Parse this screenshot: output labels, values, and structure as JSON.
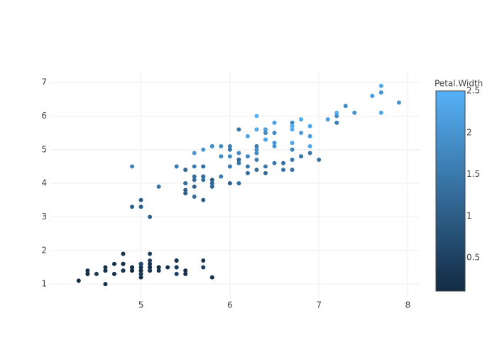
{
  "chart_data": {
    "type": "scatter",
    "x": [
      5.1,
      4.9,
      4.7,
      4.6,
      5,
      5.4,
      4.6,
      5,
      4.4,
      4.9,
      5.4,
      4.8,
      4.8,
      4.3,
      5.8,
      5.7,
      5.4,
      5.1,
      5.7,
      5.1,
      5.4,
      5.1,
      4.6,
      5.1,
      4.8,
      5,
      5,
      5.2,
      5.2,
      4.7,
      4.8,
      5.4,
      5.2,
      5.5,
      4.9,
      5,
      5.5,
      4.9,
      4.4,
      5.1,
      5,
      4.5,
      4.4,
      5,
      5.1,
      4.8,
      5.1,
      4.6,
      5.3,
      5,
      7,
      6.4,
      6.9,
      5.5,
      6.5,
      5.7,
      6.3,
      4.9,
      6.6,
      5.2,
      5,
      5.9,
      6,
      6.1,
      5.6,
      6.7,
      5.6,
      5.8,
      6.2,
      5.6,
      5.9,
      6.1,
      6.3,
      6.1,
      6.4,
      6.6,
      6.8,
      6.7,
      6,
      5.7,
      5.5,
      5.5,
      5.8,
      6,
      5.4,
      6,
      6.7,
      6.3,
      5.6,
      5.5,
      5.5,
      6.1,
      5.8,
      5,
      5.6,
      5.7,
      5.7,
      6.2,
      5.1,
      5.7,
      6.3,
      5.8,
      7.1,
      6.3,
      6.5,
      7.6,
      4.9,
      7.3,
      6.7,
      7.2,
      6.5,
      6.4,
      6.8,
      5.7,
      5.8,
      6.4,
      6.5,
      7.7,
      7.7,
      6,
      6.9,
      5.6,
      7.7,
      6.3,
      6.7,
      7.2,
      6.2,
      6.1,
      6.4,
      7.2,
      7.4,
      7.9,
      6.4,
      6.3,
      6.1,
      7.7,
      6.3,
      6.4,
      6,
      6.9,
      6.7,
      6.9,
      5.8,
      6.8,
      6.7,
      6.7,
      6.3,
      6.5,
      6.2,
      5.9
    ],
    "values": [
      1.4,
      1.4,
      1.3,
      1.5,
      1.4,
      1.7,
      1.4,
      1.5,
      1.4,
      1.5,
      1.5,
      1.6,
      1.4,
      1.1,
      1.2,
      1.5,
      1.3,
      1.4,
      1.7,
      1.5,
      1.7,
      1.5,
      1,
      1.7,
      1.9,
      1.6,
      1.6,
      1.5,
      1.4,
      1.6,
      1.6,
      1.5,
      1.5,
      1.4,
      1.5,
      1.2,
      1.3,
      1.4,
      1.3,
      1.5,
      1.3,
      1.3,
      1.3,
      1.6,
      1.9,
      1.4,
      1.6,
      1.4,
      1.5,
      1.4,
      4.7,
      4.5,
      4.9,
      4,
      4.6,
      4.5,
      4.7,
      3.3,
      4.6,
      3.9,
      3.5,
      4.2,
      4,
      4.7,
      3.6,
      4.4,
      4.5,
      4.1,
      4.5,
      3.9,
      4.8,
      4,
      4.9,
      4.7,
      4.3,
      4.4,
      4.8,
      5,
      4.5,
      3.5,
      3.8,
      3.7,
      3.9,
      5.1,
      4.5,
      4.5,
      4.7,
      4.4,
      4.1,
      4,
      4.4,
      4.6,
      4,
      3.3,
      4.2,
      4.2,
      4.2,
      4.3,
      3,
      4.1,
      6,
      5.1,
      5.9,
      5.6,
      5.8,
      6.6,
      4.5,
      6.3,
      5.8,
      6.1,
      5.1,
      5.3,
      5.5,
      5,
      5.1,
      5.3,
      5.5,
      6.7,
      6.9,
      5,
      5.7,
      4.9,
      6.7,
      4.9,
      5.7,
      6,
      4.8,
      4.9,
      5.6,
      5.8,
      6.1,
      6.4,
      5.6,
      5.1,
      5.6,
      6.1,
      5.6,
      5.5,
      4.8,
      5.4,
      5.6,
      5.1,
      5.1,
      5.9,
      5.7,
      5.2,
      5,
      5.2,
      5.4,
      5.1
    ],
    "color_values": [
      0.2,
      0.2,
      0.2,
      0.2,
      0.2,
      0.4,
      0.3,
      0.2,
      0.2,
      0.1,
      0.2,
      0.2,
      0.1,
      0.1,
      0.2,
      0.4,
      0.4,
      0.3,
      0.3,
      0.3,
      0.2,
      0.4,
      0.2,
      0.5,
      0.2,
      0.2,
      0.4,
      0.2,
      0.2,
      0.2,
      0.2,
      0.4,
      0.1,
      0.2,
      0.2,
      0.2,
      0.2,
      0.1,
      0.2,
      0.2,
      0.3,
      0.3,
      0.2,
      0.6,
      0.4,
      0.3,
      0.2,
      0.2,
      0.2,
      0.2,
      1.4,
      1.5,
      1.5,
      1.3,
      1.5,
      1.3,
      1.6,
      1,
      1.3,
      1.4,
      1,
      1.5,
      1,
      1.4,
      1.3,
      1.4,
      1.5,
      1,
      1.5,
      1.1,
      1.8,
      1.3,
      1.5,
      1.2,
      1.3,
      1.4,
      1.4,
      1.7,
      1.5,
      1,
      1.1,
      1,
      1.2,
      1.6,
      1.5,
      1.6,
      1.5,
      1.3,
      1.3,
      1.3,
      1.2,
      1.4,
      1.2,
      1,
      1.3,
      1.2,
      1.3,
      1.3,
      1.1,
      1.3,
      2.5,
      1.9,
      2.1,
      1.8,
      2.2,
      2.1,
      1.7,
      1.8,
      1.8,
      2.5,
      2,
      1.9,
      2.1,
      2,
      2.4,
      2.3,
      1.8,
      2.2,
      2.3,
      1.5,
      2.3,
      2,
      2,
      1.8,
      2.1,
      1.8,
      1.8,
      1.8,
      2.1,
      1.6,
      1.9,
      2,
      2.2,
      1.5,
      1.4,
      2.3,
      2.4,
      1.8,
      1.8,
      2.1,
      2.4,
      2.3,
      1.9,
      2.3,
      2.5,
      2.3,
      1.9,
      2,
      2.3,
      1.8
    ],
    "xlim": [
      3.99,
      8.14
    ],
    "xticks": [
      5,
      6,
      7,
      8
    ],
    "ylim": [
      0.58,
      7.34
    ],
    "yticks": [
      1,
      2,
      3,
      4,
      5,
      6,
      7
    ],
    "grid": true,
    "colorbar": {
      "title": "Petal.Width",
      "lim": [
        0.1,
        2.5
      ],
      "ticks": [
        0.5,
        1,
        1.5,
        2,
        2.5
      ],
      "colors": [
        "#132B43",
        "#56B1F7"
      ]
    }
  }
}
